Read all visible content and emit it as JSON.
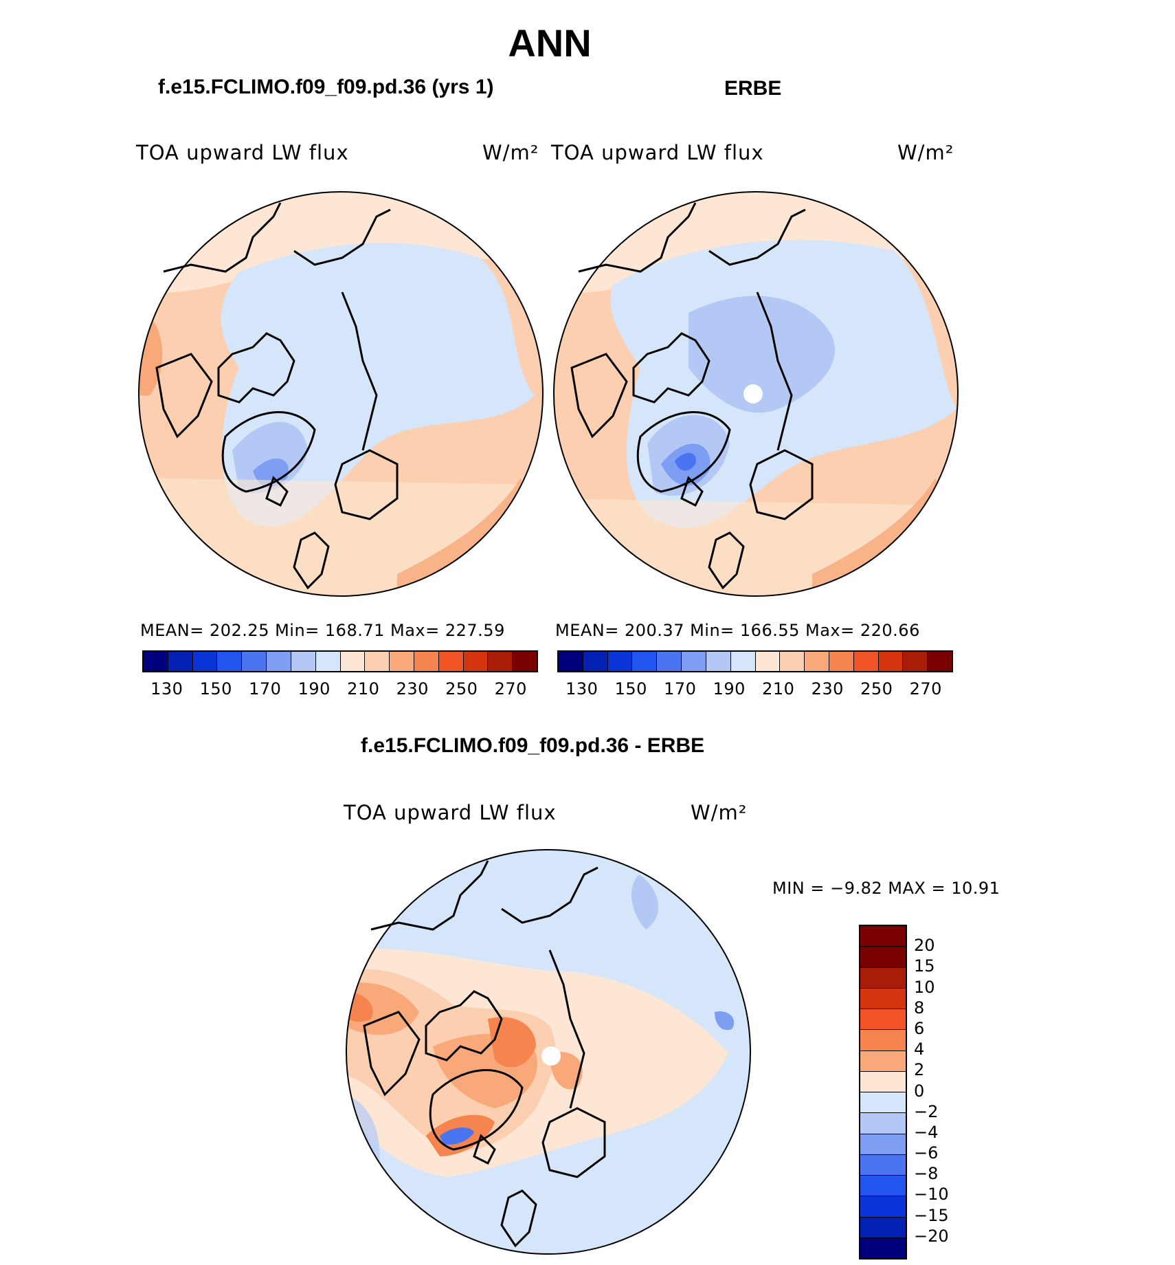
{
  "title": "ANN",
  "panels": [
    {
      "subtitle": "f.e15.FCLIMO.f09_f09.pd.36 (yrs 1)",
      "label_left": "TOA upward LW flux",
      "units": "W/m²",
      "stats": "MEAN= 202.25   Min= 168.71   Max= 227.59"
    },
    {
      "subtitle": "ERBE",
      "label_left": "TOA upward LW flux",
      "units": "W/m²",
      "stats": "MEAN= 200.37   Min= 166.55   Max= 220.66"
    }
  ],
  "diff": {
    "subtitle": "f.e15.FCLIMO.f09_f09.pd.36 - ERBE",
    "label_left": "TOA upward LW flux",
    "units": "W/m²",
    "minmax": "MIN =   −9.82 MAX =   10.91"
  },
  "colorbar_ticks": [
    "130",
    "150",
    "170",
    "190",
    "210",
    "230",
    "250",
    "270"
  ],
  "colorbar_colors": [
    "#00007f",
    "#0220b4",
    "#0a34d8",
    "#2255ef",
    "#4a74f0",
    "#7e9ef4",
    "#b4c8f6",
    "#d6e6fa",
    "#fde7d4",
    "#fbcfb0",
    "#f8a879",
    "#f5844f",
    "#f25426",
    "#d6340f",
    "#a81c08",
    "#7a0000"
  ],
  "diff_ticks": [
    "20",
    "15",
    "10",
    "8",
    "6",
    "4",
    "2",
    "0",
    "−2",
    "−4",
    "−6",
    "−8",
    "−10",
    "−15",
    "−20"
  ],
  "diff_colors": [
    "#7a0000",
    "#a81c08",
    "#d6340f",
    "#f25426",
    "#f5844f",
    "#f8a879",
    "#fde7d4",
    "#d6e6fa",
    "#b4c8f6",
    "#7e9ef4",
    "#4a74f0",
    "#2255ef",
    "#0a34d8",
    "#0220b4",
    "#00007f"
  ]
}
